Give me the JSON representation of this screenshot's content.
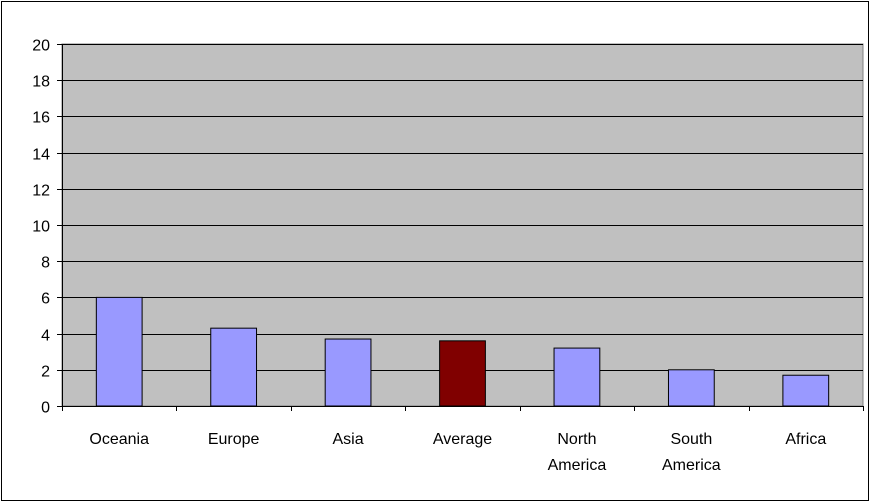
{
  "chart_data": {
    "type": "bar",
    "categories": [
      "Oceania",
      "Europe",
      "Asia",
      "Average",
      "North America",
      "South America",
      "Africa"
    ],
    "category_label_lines": [
      [
        "Oceania"
      ],
      [
        "Europe"
      ],
      [
        "Asia"
      ],
      [
        "Average"
      ],
      [
        "North",
        "America"
      ],
      [
        "South",
        "America"
      ],
      [
        "Africa"
      ]
    ],
    "values": [
      6.0,
      4.3,
      3.7,
      3.6,
      3.2,
      2.0,
      1.7
    ],
    "ylim": [
      0,
      20
    ],
    "yticks": [
      "0",
      "2",
      "4",
      "6",
      "8",
      "10",
      "12",
      "14",
      "16",
      "18",
      "20"
    ],
    "grid": true,
    "legend": false,
    "colors": {
      "plot_background": "#c0c0c0",
      "bar": "#9999ff",
      "highlight_bar": "#800000",
      "gridline": "#000000",
      "border": "#000000"
    },
    "highlight_category": "Average"
  }
}
